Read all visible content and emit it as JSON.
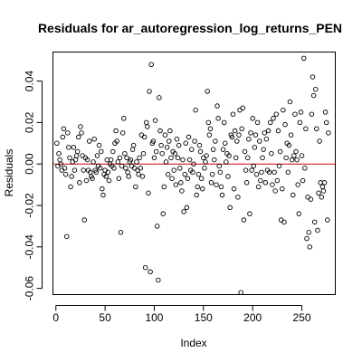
{
  "chart_data": {
    "type": "scatter",
    "title": "Residuals for ar_autoregression_log_returns_PEN",
    "xlabel": "Index",
    "ylabel": "Residuals",
    "xlim": [
      -3,
      284
    ],
    "ylim": [
      -0.063,
      0.054
    ],
    "xticks": [
      0,
      50,
      100,
      150,
      200,
      250
    ],
    "yticks": [
      -0.06,
      -0.04,
      -0.02,
      0.0,
      0.02,
      0.04
    ],
    "ytick_labels": [
      "-0.06",
      "-0.04",
      "-0.02",
      "0.00",
      "0.02",
      "0.04"
    ],
    "grid": false,
    "reference_line": {
      "y": 0,
      "color": "#cc0000"
    },
    "point_color": "#000000",
    "points": [
      [
        1,
        0.01
      ],
      [
        2,
        -0.001
      ],
      [
        3,
        0.005
      ],
      [
        4,
        0.002
      ],
      [
        5,
        0.0
      ],
      [
        6,
        -0.003
      ],
      [
        7,
        0.013
      ],
      [
        8,
        0.017
      ],
      [
        9,
        -0.002
      ],
      [
        10,
        -0.005
      ],
      [
        11,
        -0.035
      ],
      [
        12,
        0.015
      ],
      [
        13,
        0.008
      ],
      [
        14,
        0.003
      ],
      [
        15,
        -0.011
      ],
      [
        16,
        -0.006
      ],
      [
        17,
        0.001
      ],
      [
        18,
        0.008
      ],
      [
        19,
        -0.003
      ],
      [
        20,
        0.002
      ],
      [
        21,
        0.004
      ],
      [
        22,
        0.006
      ],
      [
        23,
        0.013
      ],
      [
        24,
        -0.009
      ],
      [
        25,
        0.018
      ],
      [
        26,
        0.015
      ],
      [
        27,
        0.004
      ],
      [
        28,
        -0.003
      ],
      [
        29,
        -0.027
      ],
      [
        30,
        0.003
      ],
      [
        31,
        -0.008
      ],
      [
        32,
        0.002
      ],
      [
        33,
        -0.003
      ],
      [
        34,
        0.011
      ],
      [
        35,
        -0.004
      ],
      [
        36,
        -0.006
      ],
      [
        37,
        -0.007
      ],
      [
        38,
        0.001
      ],
      [
        39,
        0.012
      ],
      [
        40,
        -0.003
      ],
      [
        41,
        -0.004
      ],
      [
        42,
        0.004
      ],
      [
        43,
        -0.001
      ],
      [
        44,
        0.009
      ],
      [
        45,
        -0.002
      ],
      [
        46,
        0.006
      ],
      [
        47,
        -0.012
      ],
      [
        48,
        -0.015
      ],
      [
        49,
        -0.005
      ],
      [
        50,
        -0.003
      ],
      [
        51,
        -0.006
      ],
      [
        52,
        0.002
      ],
      [
        53,
        -0.004
      ],
      [
        54,
        -0.008
      ],
      [
        55,
        0.0
      ],
      [
        56,
        0.002
      ],
      [
        57,
        -0.001
      ],
      [
        58,
        0.006
      ],
      [
        59,
        -0.002
      ],
      [
        60,
        0.01
      ],
      [
        61,
        0.016
      ],
      [
        62,
        0.011
      ],
      [
        63,
        0.001
      ],
      [
        64,
        -0.007
      ],
      [
        65,
        0.003
      ],
      [
        66,
        -0.033
      ],
      [
        67,
        -0.001
      ],
      [
        68,
        0.015
      ],
      [
        69,
        0.022
      ],
      [
        70,
        0.005
      ],
      [
        71,
        -0.002
      ],
      [
        72,
        0.003
      ],
      [
        73,
        -0.004
      ],
      [
        74,
        -0.006
      ],
      [
        75,
        0.001
      ],
      [
        76,
        0.002
      ],
      [
        77,
        -0.001
      ],
      [
        78,
        0.007
      ],
      [
        79,
        0.009
      ],
      [
        80,
        -0.002
      ],
      [
        81,
        -0.011
      ],
      [
        82,
        0.001
      ],
      [
        83,
        -0.003
      ],
      [
        84,
        -0.005
      ],
      [
        85,
        0.003
      ],
      [
        86,
        -0.002
      ],
      [
        87,
        0.014
      ],
      [
        88,
        -0.006
      ],
      [
        89,
        0.005
      ],
      [
        90,
        0.013
      ],
      [
        91,
        -0.05
      ],
      [
        92,
        0.02
      ],
      [
        93,
        0.018
      ],
      [
        94,
        -0.014
      ],
      [
        95,
        0.035
      ],
      [
        96,
        -0.052
      ],
      [
        97,
        0.048
      ],
      [
        98,
        0.01
      ],
      [
        99,
        0.011
      ],
      [
        100,
        0.003
      ],
      [
        101,
        0.021
      ],
      [
        102,
        0.006
      ],
      [
        103,
        -0.03
      ],
      [
        104,
        -0.056
      ],
      [
        105,
        0.032
      ],
      [
        106,
        0.016
      ],
      [
        107,
        0.009
      ],
      [
        108,
        0.005
      ],
      [
        109,
        -0.024
      ],
      [
        110,
        -0.011
      ],
      [
        111,
        0.014
      ],
      [
        112,
        0.001
      ],
      [
        113,
        0.008
      ],
      [
        114,
        -0.005
      ],
      [
        115,
        0.011
      ],
      [
        116,
        0.016
      ],
      [
        117,
        0.003
      ],
      [
        118,
        -0.007
      ],
      [
        119,
        0.006
      ],
      [
        120,
        -0.003
      ],
      [
        121,
        0.005
      ],
      [
        122,
        -0.01
      ],
      [
        123,
        0.012
      ],
      [
        124,
        0.003
      ],
      [
        125,
        0.009
      ],
      [
        126,
        -0.002
      ],
      [
        127,
        -0.009
      ],
      [
        128,
        -0.013
      ],
      [
        129,
        0.002
      ],
      [
        130,
        -0.023
      ],
      [
        131,
        -0.005
      ],
      [
        132,
        0.01
      ],
      [
        133,
        -0.021
      ],
      [
        134,
        -0.007
      ],
      [
        135,
        0.013
      ],
      [
        136,
        0.002
      ],
      [
        137,
        -0.003
      ],
      [
        138,
        0.007
      ],
      [
        139,
        -0.004
      ],
      [
        140,
        0.0
      ],
      [
        141,
        0.011
      ],
      [
        142,
        0.026
      ],
      [
        143,
        -0.015
      ],
      [
        144,
        -0.011
      ],
      [
        145,
        -0.005
      ],
      [
        146,
        0.009
      ],
      [
        147,
        0.006
      ],
      [
        148,
        -0.007
      ],
      [
        149,
        -0.012
      ],
      [
        150,
        0.003
      ],
      [
        151,
        -0.002
      ],
      [
        152,
        0.001
      ],
      [
        153,
        0.004
      ],
      [
        154,
        0.035
      ],
      [
        155,
        0.02
      ],
      [
        156,
        0.014
      ],
      [
        157,
        0.017
      ],
      [
        158,
        -0.009
      ],
      [
        159,
        -0.005
      ],
      [
        160,
        0.007
      ],
      [
        161,
        0.002
      ],
      [
        162,
        0.011
      ],
      [
        163,
        -0.01
      ],
      [
        164,
        0.028
      ],
      [
        165,
        0.022
      ],
      [
        166,
        -0.001
      ],
      [
        167,
        -0.004
      ],
      [
        168,
        -0.011
      ],
      [
        169,
        -0.015
      ],
      [
        170,
        0.007
      ],
      [
        171,
        0.02
      ],
      [
        172,
        0.01
      ],
      [
        173,
        0.001
      ],
      [
        174,
        0.005
      ],
      [
        175,
        -0.006
      ],
      [
        176,
        0.004
      ],
      [
        177,
        -0.021
      ],
      [
        178,
        0.014
      ],
      [
        179,
        0.013
      ],
      [
        180,
        0.024
      ],
      [
        181,
        -0.012
      ],
      [
        182,
        0.016
      ],
      [
        183,
        0.003
      ],
      [
        184,
        0.011
      ],
      [
        185,
        -0.016
      ],
      [
        186,
        0.014
      ],
      [
        187,
        0.026
      ],
      [
        188,
        -0.062
      ],
      [
        189,
        0.017
      ],
      [
        190,
        0.027
      ],
      [
        191,
        -0.027
      ],
      [
        192,
        0.006
      ],
      [
        193,
        -0.003
      ],
      [
        194,
        -0.009
      ],
      [
        195,
        0.003
      ],
      [
        196,
        0.012
      ],
      [
        197,
        -0.024
      ],
      [
        198,
        0.015
      ],
      [
        199,
        -0.003
      ],
      [
        200,
        0.022
      ],
      [
        201,
        -0.001
      ],
      [
        202,
        0.008
      ],
      [
        203,
        0.014
      ],
      [
        204,
        -0.005
      ],
      [
        205,
        0.02
      ],
      [
        206,
        -0.011
      ],
      [
        207,
        0.011
      ],
      [
        208,
        -0.008
      ],
      [
        209,
        -0.004
      ],
      [
        210,
        0.003
      ],
      [
        211,
        0.007
      ],
      [
        212,
        0.015
      ],
      [
        213,
        -0.009
      ],
      [
        214,
        0.012
      ],
      [
        215,
        -0.003
      ],
      [
        216,
        0.016
      ],
      [
        217,
        -0.004
      ],
      [
        218,
        0.02
      ],
      [
        219,
        0.005
      ],
      [
        220,
        -0.01
      ],
      [
        221,
        0.022
      ],
      [
        222,
        -0.004
      ],
      [
        223,
        -0.013
      ],
      [
        224,
        0.024
      ],
      [
        225,
        -0.008
      ],
      [
        226,
        0.016
      ],
      [
        227,
        -0.001
      ],
      [
        228,
        0.006
      ],
      [
        229,
        -0.027
      ],
      [
        230,
        -0.012
      ],
      [
        231,
        0.026
      ],
      [
        232,
        -0.028
      ],
      [
        233,
        0.019
      ],
      [
        234,
        0.003
      ],
      [
        235,
        0.01
      ],
      [
        236,
        -0.004
      ],
      [
        237,
        0.009
      ],
      [
        238,
        0.03
      ],
      [
        239,
        0.014
      ],
      [
        240,
        0.002
      ],
      [
        241,
        -0.015
      ],
      [
        242,
        0.004
      ],
      [
        243,
        0.024
      ],
      [
        244,
        0.006
      ],
      [
        245,
        0.002
      ],
      [
        246,
        -0.01
      ],
      [
        247,
        -0.024
      ],
      [
        248,
        0.02
      ],
      [
        249,
        0.025
      ],
      [
        250,
        0.004
      ],
      [
        251,
        -0.008
      ],
      [
        252,
        0.051
      ],
      [
        253,
        -0.002
      ],
      [
        254,
        0.017
      ],
      [
        255,
        -0.036
      ],
      [
        256,
        -0.016
      ],
      [
        257,
        -0.033
      ],
      [
        258,
        -0.04
      ],
      [
        259,
        -0.017
      ],
      [
        260,
        0.024
      ],
      [
        261,
        0.042
      ],
      [
        262,
        0.033
      ],
      [
        263,
        -0.028
      ],
      [
        264,
        0.036
      ],
      [
        265,
        0.017
      ],
      [
        266,
        -0.032
      ],
      [
        267,
        -0.014
      ],
      [
        268,
        0.011
      ],
      [
        269,
        -0.009
      ],
      [
        270,
        -0.016
      ],
      [
        271,
        -0.011
      ],
      [
        272,
        -0.013
      ],
      [
        273,
        -0.009
      ],
      [
        274,
        0.025
      ],
      [
        275,
        0.02
      ],
      [
        276,
        -0.027
      ],
      [
        277,
        0.015
      ]
    ]
  }
}
